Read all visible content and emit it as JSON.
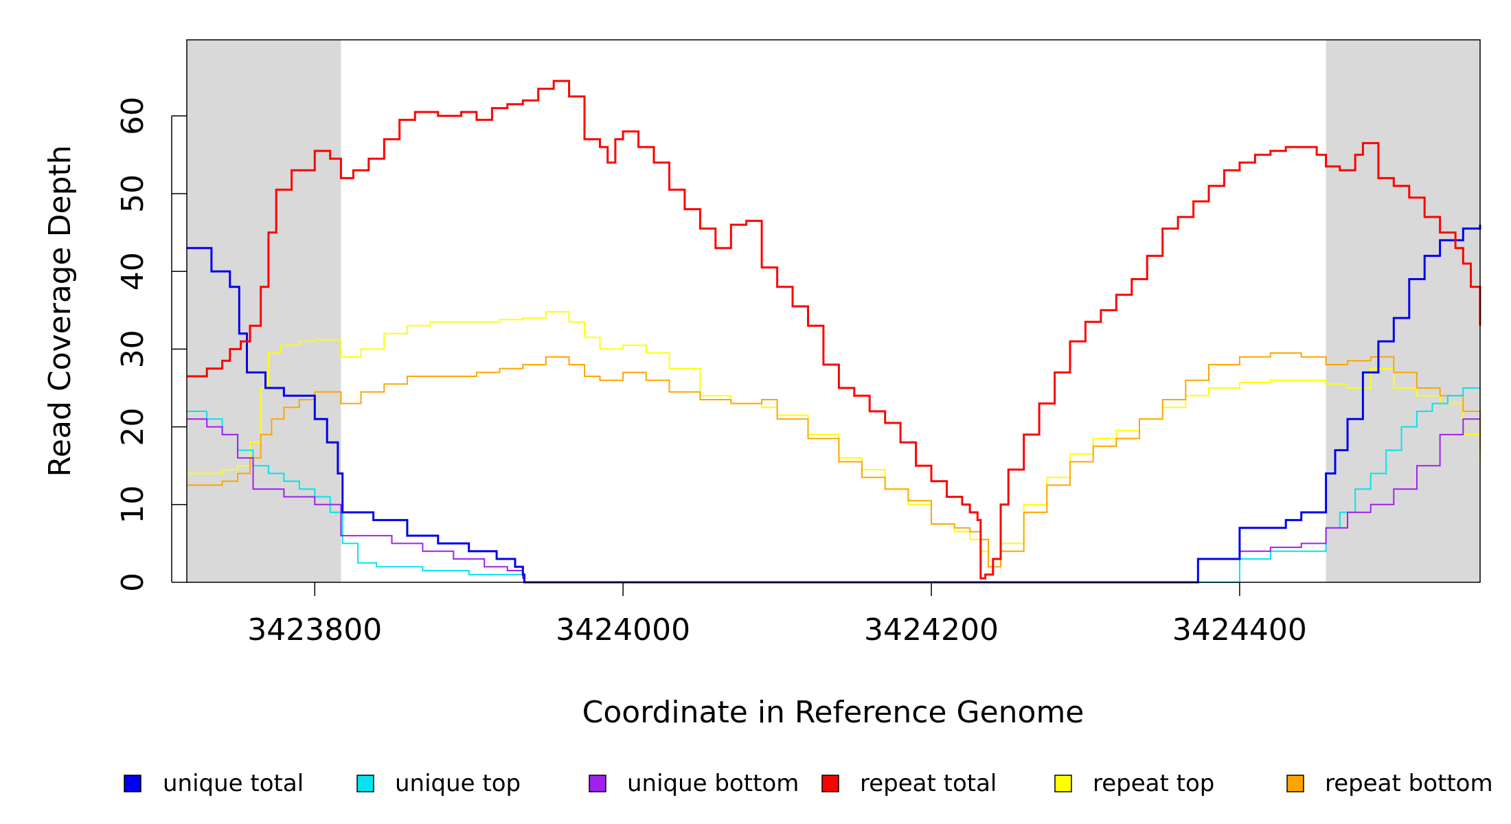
{
  "chart_data": {
    "type": "line",
    "step": true,
    "xlabel": "Coordinate in Reference Genome",
    "ylabel": "Read Coverage Depth",
    "xlim": [
      3423717,
      3424556
    ],
    "ylim": [
      0,
      70
    ],
    "xticks": [
      3423800,
      3424000,
      3424200,
      3424400
    ],
    "yticks": [
      0,
      10,
      20,
      30,
      40,
      50,
      60
    ],
    "shaded_regions": [
      {
        "from": 3423717,
        "to": 3423817,
        "color": "#d9d9d9"
      },
      {
        "from": 3424456,
        "to": 3424556,
        "color": "#d9d9d9"
      }
    ],
    "grid": false,
    "legend_position": "bottom",
    "series": [
      {
        "name": "repeat top",
        "color": "#ffff00",
        "width": 2,
        "x": [
          3423717,
          3423740,
          3423750,
          3423758,
          3423765,
          3423770,
          3423778,
          3423790,
          3423800,
          3423817,
          3423830,
          3423845,
          3423860,
          3423875,
          3423890,
          3423905,
          3423920,
          3423935,
          3423950,
          3423965,
          3423975,
          3423985,
          3424000,
          3424015,
          3424030,
          3424050,
          3424070,
          3424090,
          3424100,
          3424120,
          3424140,
          3424155,
          3424170,
          3424185,
          3424200,
          3424215,
          3424225,
          3424232,
          3424237,
          3424245,
          3424260,
          3424275,
          3424290,
          3424305,
          3424320,
          3424335,
          3424350,
          3424365,
          3424380,
          3424400,
          3424420,
          3424440,
          3424456,
          3424470,
          3424485,
          3424500,
          3424515,
          3424530,
          3424545,
          3424556
        ],
        "y": [
          14,
          14.5,
          15,
          18,
          25,
          29.5,
          30.5,
          31,
          31.2,
          29,
          30,
          32,
          33,
          33.5,
          33.5,
          33.5,
          33.8,
          34,
          34.8,
          33.5,
          31.5,
          30,
          30.5,
          29.5,
          27.5,
          24,
          23,
          22.5,
          21.5,
          19,
          16,
          14.5,
          12,
          10,
          7.5,
          6.5,
          5.5,
          4,
          2,
          5,
          10,
          13.5,
          16.5,
          18.5,
          19.5,
          21,
          22.5,
          24,
          25,
          25.7,
          26,
          26,
          25.5,
          25,
          27.5,
          25,
          24,
          23,
          19,
          15.5
        ]
      },
      {
        "name": "repeat bottom",
        "color": "#ffa500",
        "width": 2,
        "x": [
          3423717,
          3423740,
          3423750,
          3423758,
          3423765,
          3423772,
          3423780,
          3423790,
          3423800,
          3423817,
          3423830,
          3423845,
          3423860,
          3423875,
          3423890,
          3423905,
          3423920,
          3423935,
          3423950,
          3423965,
          3423975,
          3423985,
          3424000,
          3424015,
          3424030,
          3424050,
          3424070,
          3424090,
          3424100,
          3424120,
          3424140,
          3424155,
          3424170,
          3424185,
          3424200,
          3424215,
          3424225,
          3424232,
          3424237,
          3424245,
          3424260,
          3424275,
          3424290,
          3424305,
          3424320,
          3424335,
          3424350,
          3424365,
          3424380,
          3424400,
          3424420,
          3424440,
          3424456,
          3424470,
          3424485,
          3424500,
          3424515,
          3424530,
          3424545,
          3424556
        ],
        "y": [
          12.5,
          13,
          14,
          16,
          19,
          21,
          22.5,
          23.5,
          24.5,
          23,
          24.5,
          25.5,
          26.5,
          26.5,
          26.5,
          27,
          27.5,
          28,
          29,
          28,
          26.5,
          26,
          27,
          26,
          24.5,
          23.5,
          23,
          23.5,
          21,
          18.5,
          15.5,
          13.5,
          12,
          10.5,
          7.5,
          7,
          6.5,
          5.5,
          2,
          4,
          9,
          12.5,
          15.5,
          17.5,
          18.5,
          21,
          23.5,
          26,
          28,
          29,
          29.5,
          29,
          28,
          28.5,
          29,
          27,
          25,
          24,
          22,
          17
        ]
      },
      {
        "name": "unique top",
        "color": "#00e5ee",
        "width": 2,
        "x": [
          3423717,
          3423730,
          3423740,
          3423750,
          3423760,
          3423770,
          3423780,
          3423790,
          3423800,
          3423810,
          3423818,
          3423828,
          3423840,
          3423870,
          3423900,
          3423930,
          3423935,
          3423936,
          3424373,
          3424400,
          3424420,
          3424430,
          3424445,
          3424456,
          3424465,
          3424475,
          3424485,
          3424495,
          3424505,
          3424515,
          3424525,
          3424535,
          3424545,
          3424556
        ],
        "y": [
          22,
          21,
          19,
          17,
          15,
          14,
          13,
          12,
          11,
          9,
          5,
          2.5,
          2,
          1.5,
          1,
          1,
          0.5,
          0,
          0,
          3,
          4,
          4,
          4,
          7,
          9,
          12,
          14,
          17,
          20,
          22,
          23,
          24,
          25,
          25
        ]
      },
      {
        "name": "unique bottom",
        "color": "#a020f0",
        "width": 2,
        "x": [
          3423717,
          3423730,
          3423740,
          3423750,
          3423760,
          3423780,
          3423800,
          3423817,
          3423850,
          3423870,
          3423890,
          3423910,
          3423925,
          3423935,
          3423936,
          3424373,
          3424400,
          3424420,
          3424440,
          3424456,
          3424470,
          3424485,
          3424500,
          3424515,
          3424530,
          3424545,
          3424556
        ],
        "y": [
          21,
          20,
          19,
          16,
          12,
          11,
          10,
          6,
          5,
          4,
          3,
          2,
          1.5,
          0.5,
          0,
          3,
          4,
          4.5,
          5,
          7,
          9,
          10,
          12,
          15,
          19,
          21,
          21
        ]
      },
      {
        "name": "unique total",
        "color": "#0000ee",
        "width": 3,
        "x": [
          3423717,
          3423733,
          3423745,
          3423751,
          3423756,
          3423768,
          3423780,
          3423800,
          3423808,
          3423815,
          3423818,
          3423838,
          3423860,
          3423880,
          3423900,
          3423918,
          3423930,
          3423935,
          3423936,
          3424373,
          3424400,
          3424430,
          3424440,
          3424456,
          3424462,
          3424470,
          3424480,
          3424490,
          3424500,
          3424510,
          3424520,
          3424530,
          3424545,
          3424556
        ],
        "y": [
          43,
          40,
          38,
          32,
          27,
          25,
          24,
          21,
          18,
          14,
          9,
          8,
          6,
          5,
          4,
          3,
          2,
          1,
          0,
          3,
          7,
          8,
          9,
          14,
          17,
          21,
          27,
          31,
          34,
          39,
          42,
          44,
          45.5,
          46
        ]
      },
      {
        "name": "repeat total",
        "color": "#ff0000",
        "width": 3,
        "x": [
          3423717,
          3423730,
          3423740,
          3423745,
          3423752,
          3423758,
          3423765,
          3423770,
          3423775,
          3423785,
          3423800,
          3423810,
          3423817,
          3423825,
          3423835,
          3423845,
          3423855,
          3423865,
          3423880,
          3423895,
          3423905,
          3423915,
          3423925,
          3423935,
          3423945,
          3423955,
          3423965,
          3423975,
          3423985,
          3423990,
          3423995,
          3424000,
          3424010,
          3424020,
          3424030,
          3424040,
          3424050,
          3424060,
          3424070,
          3424080,
          3424090,
          3424100,
          3424110,
          3424120,
          3424130,
          3424140,
          3424150,
          3424160,
          3424170,
          3424180,
          3424190,
          3424200,
          3424210,
          3424220,
          3424225,
          3424230,
          3424232,
          3424235,
          3424240,
          3424245,
          3424250,
          3424260,
          3424270,
          3424280,
          3424290,
          3424300,
          3424310,
          3424320,
          3424330,
          3424340,
          3424350,
          3424360,
          3424370,
          3424380,
          3424390,
          3424400,
          3424410,
          3424420,
          3424430,
          3424440,
          3424450,
          3424456,
          3424465,
          3424475,
          3424480,
          3424490,
          3424500,
          3424510,
          3424520,
          3424530,
          3424540,
          3424545,
          3424550,
          3424556
        ],
        "y": [
          26.5,
          27.5,
          28.5,
          30,
          31,
          33,
          38,
          45,
          50.5,
          53,
          55.5,
          54.5,
          52,
          53,
          54.5,
          57,
          59.5,
          60.5,
          60,
          60.5,
          59.5,
          61,
          61.5,
          62,
          63.5,
          64.5,
          62.5,
          57,
          56,
          54,
          57,
          58,
          56,
          54,
          50.5,
          48,
          45.5,
          43,
          46,
          46.5,
          40.5,
          38,
          35.5,
          33,
          28,
          25,
          24,
          22,
          20.5,
          18,
          15,
          13,
          11,
          10,
          9,
          8,
          0.5,
          1,
          3,
          10,
          14.5,
          19,
          23,
          27,
          31,
          33.5,
          35,
          37,
          39,
          42,
          45.5,
          47,
          49,
          51,
          53,
          54,
          55,
          55.5,
          56,
          56,
          55,
          53.5,
          53,
          55,
          56.5,
          52,
          51,
          49.5,
          47,
          45,
          43,
          41,
          38,
          33
        ]
      }
    ],
    "legend": [
      {
        "label": "unique total",
        "color": "#0000ee"
      },
      {
        "label": "unique top",
        "color": "#00e5ee"
      },
      {
        "label": "unique bottom",
        "color": "#a020f0"
      },
      {
        "label": "repeat total",
        "color": "#ff0000"
      },
      {
        "label": "repeat top",
        "color": "#ffff00"
      },
      {
        "label": "repeat bottom",
        "color": "#ffa500"
      }
    ]
  }
}
